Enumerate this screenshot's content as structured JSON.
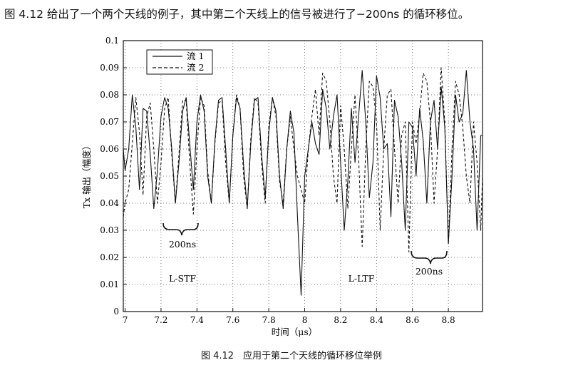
{
  "intro_text": "图 4.12 给出了一个两个天线的例子，其中第二个天线上的信号被进行了−200ns 的循环移位。",
  "figure_caption": "图 4.12　应用于第二个天线的循环移位举例",
  "chart_data": {
    "type": "line",
    "title": "",
    "xlabel": "时间（μs）",
    "ylabel": "Tx 输出（幅度）",
    "xlim": [
      6.99,
      8.99
    ],
    "ylim": [
      0,
      0.1
    ],
    "xticks": [
      "7",
      "7.2",
      "7.4",
      "7.6",
      "7.8",
      "8",
      "8.2",
      "8.4",
      "8.6",
      "8.8"
    ],
    "xtick_values": [
      7,
      7.2,
      7.4,
      7.6,
      7.8,
      8,
      8.2,
      8.4,
      8.6,
      8.8
    ],
    "yticks": [
      "0",
      "0.01",
      "0.02",
      "0.03",
      "0.04",
      "0.05",
      "0.06",
      "0.07",
      "0.08",
      "0.09",
      "0.1"
    ],
    "ytick_values": [
      0,
      0.01,
      0.02,
      0.03,
      0.04,
      0.05,
      0.06,
      0.07,
      0.08,
      0.09,
      0.1
    ],
    "grid": true,
    "legend_position": "top-left",
    "annotations": [
      "200ns",
      "L-STF",
      "L-LTF",
      "200ns"
    ],
    "series": [
      {
        "name": "流 1",
        "style": "solid",
        "color": "#111111",
        "x": [
          6.99,
          7.0,
          7.02,
          7.04,
          7.06,
          7.08,
          7.1,
          7.12,
          7.14,
          7.16,
          7.18,
          7.2,
          7.22,
          7.24,
          7.26,
          7.28,
          7.3,
          7.32,
          7.34,
          7.36,
          7.38,
          7.4,
          7.42,
          7.44,
          7.46,
          7.48,
          7.5,
          7.52,
          7.54,
          7.56,
          7.58,
          7.6,
          7.62,
          7.64,
          7.66,
          7.68,
          7.7,
          7.72,
          7.74,
          7.76,
          7.78,
          7.8,
          7.82,
          7.84,
          7.86,
          7.88,
          7.9,
          7.92,
          7.94,
          7.96,
          7.98,
          8.0,
          8.02,
          8.04,
          8.06,
          8.08,
          8.1,
          8.12,
          8.14,
          8.16,
          8.18,
          8.2,
          8.22,
          8.24,
          8.26,
          8.28,
          8.3,
          8.32,
          8.34,
          8.36,
          8.38,
          8.4,
          8.42,
          8.44,
          8.46,
          8.48,
          8.5,
          8.52,
          8.54,
          8.56,
          8.58,
          8.6,
          8.62,
          8.64,
          8.66,
          8.68,
          8.7,
          8.72,
          8.74,
          8.76,
          8.78,
          8.8,
          8.82,
          8.84,
          8.86,
          8.88,
          8.9,
          8.92,
          8.94,
          8.96,
          8.98,
          8.99
        ],
        "y": [
          0.06,
          0.052,
          0.06,
          0.08,
          0.068,
          0.045,
          0.075,
          0.074,
          0.058,
          0.038,
          0.052,
          0.072,
          0.079,
          0.075,
          0.06,
          0.04,
          0.055,
          0.074,
          0.079,
          0.062,
          0.045,
          0.07,
          0.08,
          0.074,
          0.05,
          0.04,
          0.063,
          0.078,
          0.079,
          0.06,
          0.04,
          0.065,
          0.079,
          0.075,
          0.054,
          0.038,
          0.062,
          0.078,
          0.079,
          0.058,
          0.042,
          0.066,
          0.079,
          0.074,
          0.05,
          0.038,
          0.06,
          0.074,
          0.066,
          0.035,
          0.006,
          0.05,
          0.06,
          0.07,
          0.062,
          0.058,
          0.082,
          0.075,
          0.06,
          0.072,
          0.08,
          0.055,
          0.03,
          0.048,
          0.075,
          0.055,
          0.072,
          0.089,
          0.07,
          0.042,
          0.055,
          0.087,
          0.079,
          0.06,
          0.062,
          0.035,
          0.078,
          0.072,
          0.055,
          0.03,
          0.07,
          0.068,
          0.05,
          0.075,
          0.063,
          0.04,
          0.07,
          0.078,
          0.06,
          0.083,
          0.068,
          0.025,
          0.05,
          0.08,
          0.07,
          0.073,
          0.089,
          0.07,
          0.06,
          0.03,
          0.065,
          0.065
        ]
      },
      {
        "name": "流 2",
        "style": "dashed",
        "color": "#111111",
        "x": [
          6.99,
          7.0,
          7.02,
          7.04,
          7.06,
          7.08,
          7.1,
          7.12,
          7.14,
          7.16,
          7.18,
          7.2,
          7.22,
          7.24,
          7.26,
          7.28,
          7.3,
          7.32,
          7.34,
          7.36,
          7.38,
          7.4,
          7.42,
          7.44,
          7.46,
          7.48,
          7.5,
          7.52,
          7.54,
          7.56,
          7.58,
          7.6,
          7.62,
          7.64,
          7.66,
          7.68,
          7.7,
          7.72,
          7.74,
          7.76,
          7.78,
          7.8,
          7.82,
          7.84,
          7.86,
          7.88,
          7.9,
          7.92,
          7.94,
          7.96,
          7.98,
          8.0,
          8.02,
          8.04,
          8.06,
          8.08,
          8.1,
          8.12,
          8.14,
          8.16,
          8.18,
          8.2,
          8.22,
          8.24,
          8.26,
          8.28,
          8.3,
          8.32,
          8.34,
          8.36,
          8.38,
          8.4,
          8.42,
          8.44,
          8.46,
          8.48,
          8.5,
          8.52,
          8.54,
          8.56,
          8.58,
          8.6,
          8.62,
          8.64,
          8.66,
          8.68,
          8.7,
          8.72,
          8.74,
          8.76,
          8.78,
          8.8,
          8.82,
          8.84,
          8.86,
          8.88,
          8.9,
          8.92,
          8.94,
          8.96,
          8.98,
          8.99
        ],
        "y": [
          0.035,
          0.04,
          0.045,
          0.062,
          0.079,
          0.066,
          0.043,
          0.072,
          0.077,
          0.06,
          0.04,
          0.055,
          0.075,
          0.079,
          0.058,
          0.04,
          0.058,
          0.078,
          0.078,
          0.055,
          0.036,
          0.06,
          0.079,
          0.076,
          0.052,
          0.04,
          0.062,
          0.077,
          0.078,
          0.055,
          0.04,
          0.065,
          0.08,
          0.075,
          0.05,
          0.038,
          0.064,
          0.079,
          0.077,
          0.055,
          0.04,
          0.068,
          0.079,
          0.072,
          0.048,
          0.04,
          0.06,
          0.072,
          0.06,
          0.05,
          0.045,
          0.04,
          0.06,
          0.072,
          0.082,
          0.065,
          0.088,
          0.085,
          0.07,
          0.05,
          0.04,
          0.076,
          0.06,
          0.038,
          0.06,
          0.08,
          0.057,
          0.024,
          0.06,
          0.085,
          0.083,
          0.07,
          0.03,
          0.06,
          0.08,
          0.082,
          0.06,
          0.04,
          0.065,
          0.07,
          0.022,
          0.07,
          0.062,
          0.073,
          0.088,
          0.085,
          0.07,
          0.04,
          0.06,
          0.09,
          0.07,
          0.025,
          0.06,
          0.085,
          0.08,
          0.068,
          0.05,
          0.04,
          0.07,
          0.055,
          0.03,
          0.05
        ]
      }
    ]
  }
}
